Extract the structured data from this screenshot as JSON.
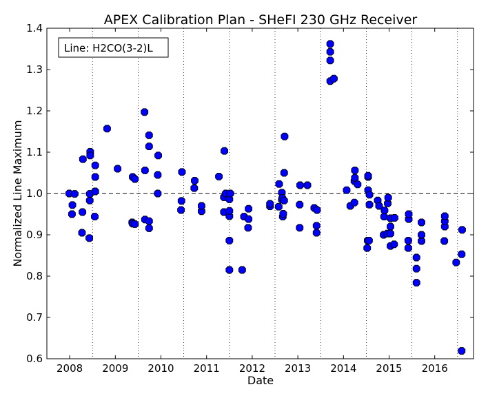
{
  "chart_data": {
    "type": "scatter",
    "title": "APEX Calibration Plan - SHeFI 230 GHz Receiver",
    "xlabel": "Date",
    "ylabel": "Normalized Line Maximum",
    "annotation": "Line: H2CO(3-2)L",
    "xlim": [
      2007.5,
      2016.85
    ],
    "ylim": [
      0.6,
      1.4
    ],
    "x_ticks": [
      2008,
      2009,
      2010,
      2011,
      2012,
      2013,
      2014,
      2015,
      2016
    ],
    "x_tick_labels": [
      "2008",
      "2009",
      "2010",
      "2011",
      "2012",
      "2013",
      "2014",
      "2015",
      "2016"
    ],
    "y_ticks": [
      0.6,
      0.7,
      0.8,
      0.9,
      1.0,
      1.1,
      1.2,
      1.3,
      1.4
    ],
    "y_tick_labels": [
      "0.6",
      "0.7",
      "0.8",
      "0.9",
      "1.0",
      "1.1",
      "1.2",
      "1.3",
      "1.4"
    ],
    "reference_line": {
      "y": 1.0,
      "style": "dashed"
    },
    "vertical_grid": [
      2008.5,
      2009.5,
      2010.5,
      2011.5,
      2012.5,
      2013.5,
      2014.5,
      2015.5,
      2016.5
    ],
    "marker_color": "#0000ff",
    "points": [
      [
        2007.99,
        1.0
      ],
      [
        2008.05,
        0.95
      ],
      [
        2008.06,
        0.972
      ],
      [
        2008.11,
        0.999
      ],
      [
        2008.27,
        0.905
      ],
      [
        2008.28,
        0.955
      ],
      [
        2008.29,
        1.083
      ],
      [
        2008.43,
        0.892
      ],
      [
        2008.44,
        0.983
      ],
      [
        2008.44,
        0.999
      ],
      [
        2008.45,
        1.101
      ],
      [
        2008.45,
        1.092
      ],
      [
        2008.55,
        0.944
      ],
      [
        2008.56,
        1.005
      ],
      [
        2008.56,
        1.04
      ],
      [
        2008.56,
        1.068
      ],
      [
        2008.82,
        1.157
      ],
      [
        2009.05,
        1.06
      ],
      [
        2009.37,
        0.93
      ],
      [
        2009.38,
        0.927
      ],
      [
        2009.38,
        1.04
      ],
      [
        2009.43,
        0.926
      ],
      [
        2009.43,
        1.035
      ],
      [
        2009.64,
        1.197
      ],
      [
        2009.65,
        0.937
      ],
      [
        2009.65,
        1.056
      ],
      [
        2009.74,
        0.916
      ],
      [
        2009.74,
        0.933
      ],
      [
        2009.74,
        1.114
      ],
      [
        2009.74,
        1.141
      ],
      [
        2009.93,
        1.0
      ],
      [
        2009.93,
        1.045
      ],
      [
        2009.94,
        1.092
      ],
      [
        2010.44,
        0.96
      ],
      [
        2010.45,
        0.982
      ],
      [
        2010.46,
        1.052
      ],
      [
        2010.73,
        1.013
      ],
      [
        2010.74,
        1.031
      ],
      [
        2010.89,
        0.957
      ],
      [
        2010.89,
        0.97
      ],
      [
        2011.27,
        1.041
      ],
      [
        2011.38,
        0.955
      ],
      [
        2011.38,
        0.991
      ],
      [
        2011.39,
        1.103
      ],
      [
        2011.42,
        1.0
      ],
      [
        2011.5,
        0.815
      ],
      [
        2011.5,
        0.886
      ],
      [
        2011.5,
        0.945
      ],
      [
        2011.5,
        0.958
      ],
      [
        2011.5,
        0.986
      ],
      [
        2011.52,
        1.0
      ],
      [
        2011.78,
        0.815
      ],
      [
        2011.82,
        0.944
      ],
      [
        2011.91,
        0.917
      ],
      [
        2011.92,
        0.938
      ],
      [
        2011.92,
        0.963
      ],
      [
        2012.39,
        0.969
      ],
      [
        2012.39,
        0.975
      ],
      [
        2012.58,
        0.968
      ],
      [
        2012.59,
        1.023
      ],
      [
        2012.65,
        0.985
      ],
      [
        2012.65,
        1.002
      ],
      [
        2012.66,
        0.989
      ],
      [
        2012.67,
        0.944
      ],
      [
        2012.68,
        0.951
      ],
      [
        2012.7,
        0.983
      ],
      [
        2012.7,
        1.05
      ],
      [
        2012.71,
        1.138
      ],
      [
        2013.04,
        0.917
      ],
      [
        2013.04,
        0.973
      ],
      [
        2013.05,
        1.02
      ],
      [
        2013.21,
        1.02
      ],
      [
        2013.36,
        0.965
      ],
      [
        2013.41,
        0.905
      ],
      [
        2013.41,
        0.922
      ],
      [
        2013.42,
        0.96
      ],
      [
        2013.71,
        1.272
      ],
      [
        2013.71,
        1.322
      ],
      [
        2013.71,
        1.343
      ],
      [
        2013.71,
        1.362
      ],
      [
        2013.79,
        1.278
      ],
      [
        2014.07,
        1.008
      ],
      [
        2014.15,
        0.97
      ],
      [
        2014.24,
        0.978
      ],
      [
        2014.24,
        1.03
      ],
      [
        2014.25,
        1.038
      ],
      [
        2014.25,
        1.056
      ],
      [
        2014.31,
        1.022
      ],
      [
        2014.52,
        0.868
      ],
      [
        2014.53,
        0.886
      ],
      [
        2014.54,
        1.008
      ],
      [
        2014.54,
        1.04
      ],
      [
        2014.54,
        1.043
      ],
      [
        2014.56,
        0.886
      ],
      [
        2014.57,
        0.973
      ],
      [
        2014.57,
        0.997
      ],
      [
        2014.75,
        0.983
      ],
      [
        2014.78,
        0.97
      ],
      [
        2014.88,
        0.9
      ],
      [
        2014.89,
        0.944
      ],
      [
        2014.9,
        0.959
      ],
      [
        2014.96,
        0.903
      ],
      [
        2014.97,
        0.976
      ],
      [
        2014.98,
        0.99
      ],
      [
        2015.03,
        0.873
      ],
      [
        2015.03,
        0.903
      ],
      [
        2015.03,
        0.92
      ],
      [
        2015.03,
        0.94
      ],
      [
        2015.11,
        0.877
      ],
      [
        2015.12,
        0.941
      ],
      [
        2015.42,
        0.868
      ],
      [
        2015.42,
        0.886
      ],
      [
        2015.43,
        0.938
      ],
      [
        2015.43,
        0.95
      ],
      [
        2015.6,
        0.784
      ],
      [
        2015.6,
        0.818
      ],
      [
        2015.6,
        0.845
      ],
      [
        2015.71,
        0.885
      ],
      [
        2015.71,
        0.9
      ],
      [
        2015.71,
        0.93
      ],
      [
        2016.21,
        0.885
      ],
      [
        2016.22,
        0.92
      ],
      [
        2016.22,
        0.933
      ],
      [
        2016.22,
        0.945
      ],
      [
        2016.47,
        0.833
      ],
      [
        2016.59,
        0.619
      ],
      [
        2016.59,
        0.853
      ],
      [
        2016.6,
        0.912
      ]
    ]
  }
}
